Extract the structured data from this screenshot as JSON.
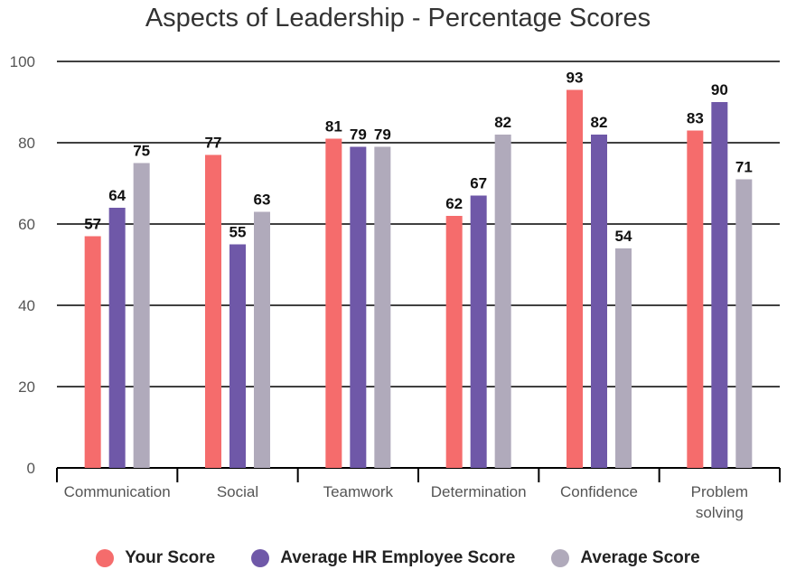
{
  "chart_data": {
    "type": "bar",
    "title": "Aspects of Leadership - Percentage Scores",
    "categories": [
      [
        "Communication"
      ],
      [
        "Social"
      ],
      [
        "Teamwork"
      ],
      [
        "Determination"
      ],
      [
        "Confidence"
      ],
      [
        "Problem",
        "solving"
      ]
    ],
    "series": [
      {
        "name": "Your Score",
        "color": "#f56c6c",
        "values": [
          57,
          77,
          81,
          62,
          93,
          83
        ]
      },
      {
        "name": "Average HR Employee Score",
        "color": "#6f58a8",
        "values": [
          64,
          55,
          79,
          67,
          82,
          90
        ]
      },
      {
        "name": "Average Score",
        "color": "#b0aabb",
        "values": [
          75,
          63,
          79,
          82,
          54,
          71
        ]
      }
    ],
    "ylim": [
      0,
      100
    ],
    "yticks": [
      0,
      20,
      40,
      60,
      80,
      100
    ],
    "grid": true,
    "legend": "bottom-center"
  }
}
